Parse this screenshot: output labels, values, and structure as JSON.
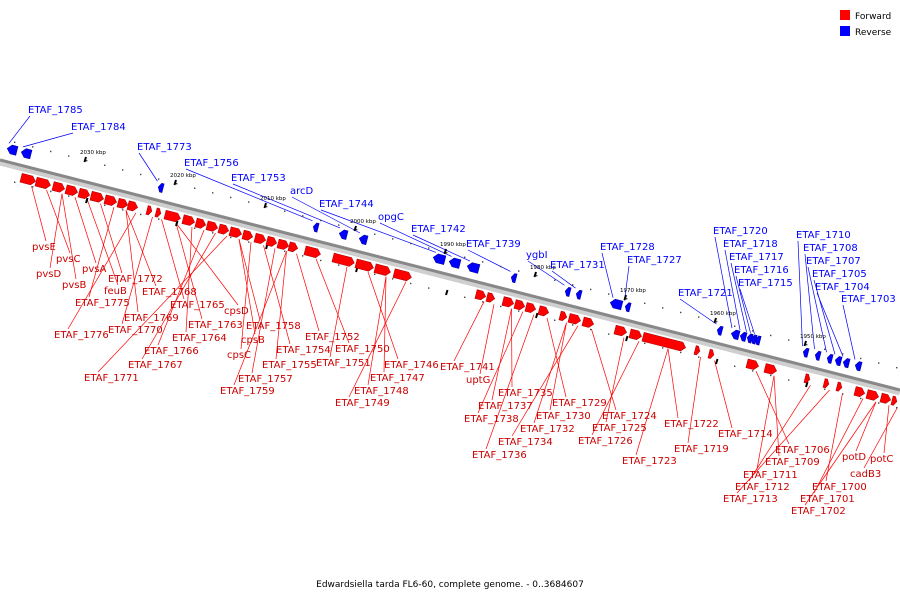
{
  "legend": {
    "forward_label": "Forward",
    "reverse_label": "Reverse",
    "forward_color": "#ff0000",
    "reverse_color": "#0000ff"
  },
  "caption": "Edwardsiella tarda FL6-60, complete genome. - 0..3684607",
  "axis": {
    "ticks": [
      {
        "label": "2030 kbp"
      },
      {
        "label": "2020 kbp"
      },
      {
        "label": "2010 kbp"
      },
      {
        "label": "2000 kbp"
      },
      {
        "label": "1990 kbp"
      },
      {
        "label": "1980 kbp"
      },
      {
        "label": "1970 kbp"
      },
      {
        "label": "1960 kbp"
      },
      {
        "label": "1950 kbp"
      }
    ]
  },
  "reverse_genes": [
    "ETAF_1785",
    "ETAF_1784",
    "ETAF_1773",
    "ETAF_1756",
    "ETAF_1753",
    "arcD",
    "ETAF_1744",
    "opgC",
    "ETAF_1742",
    "ETAF_1739",
    "ygbI",
    "ETAF_1731",
    "ETAF_1728",
    "ETAF_1727",
    "ETAF_1721",
    "ETAF_1720",
    "ETAF_1718",
    "ETAF_1717",
    "ETAF_1716",
    "ETAF_1715",
    "ETAF_1710",
    "ETAF_1708",
    "ETAF_1707",
    "ETAF_1705",
    "ETAF_1704",
    "ETAF_1703"
  ],
  "forward_genes": [
    "pvsE",
    "pvsC",
    "pvsD",
    "pvsB",
    "pvsA",
    "feuB",
    "ETAF_1772",
    "ETAF_1775",
    "ETAF_1768",
    "ETAF_1769",
    "ETAF_1776",
    "ETAF_1770",
    "ETAF_1765",
    "ETAF_1763",
    "cpsD",
    "ETAF_1764",
    "ETAF_1766",
    "ETAF_1767",
    "ETAF_1771",
    "ETAF_1758",
    "cpsB",
    "cpsC",
    "ETAF_1754",
    "ETAF_1757",
    "ETAF_1755",
    "ETAF_1759",
    "ETAF_1752",
    "ETAF_1750",
    "ETAF_1751",
    "ETAF_1746",
    "ETAF_1747",
    "ETAF_1748",
    "ETAF_1749",
    "ETAF_1741",
    "uptG",
    "ETAF_1735",
    "ETAF_1737",
    "ETAF_1738",
    "ETAF_1736",
    "ETAF_1729",
    "ETAF_1730",
    "ETAF_1732",
    "ETAF_1734",
    "ETAF_1724",
    "ETAF_1725",
    "ETAF_1726",
    "ETAF_1723",
    "ETAF_1722",
    "ETAF_1719",
    "ETAF_1714",
    "ETAF_1706",
    "ETAF_1709",
    "ETAF_1711",
    "ETAF_1712",
    "ETAF_1713",
    "ETAF_1700",
    "ETAF_1701",
    "ETAF_1702",
    "potD",
    "potC",
    "cadB3"
  ]
}
